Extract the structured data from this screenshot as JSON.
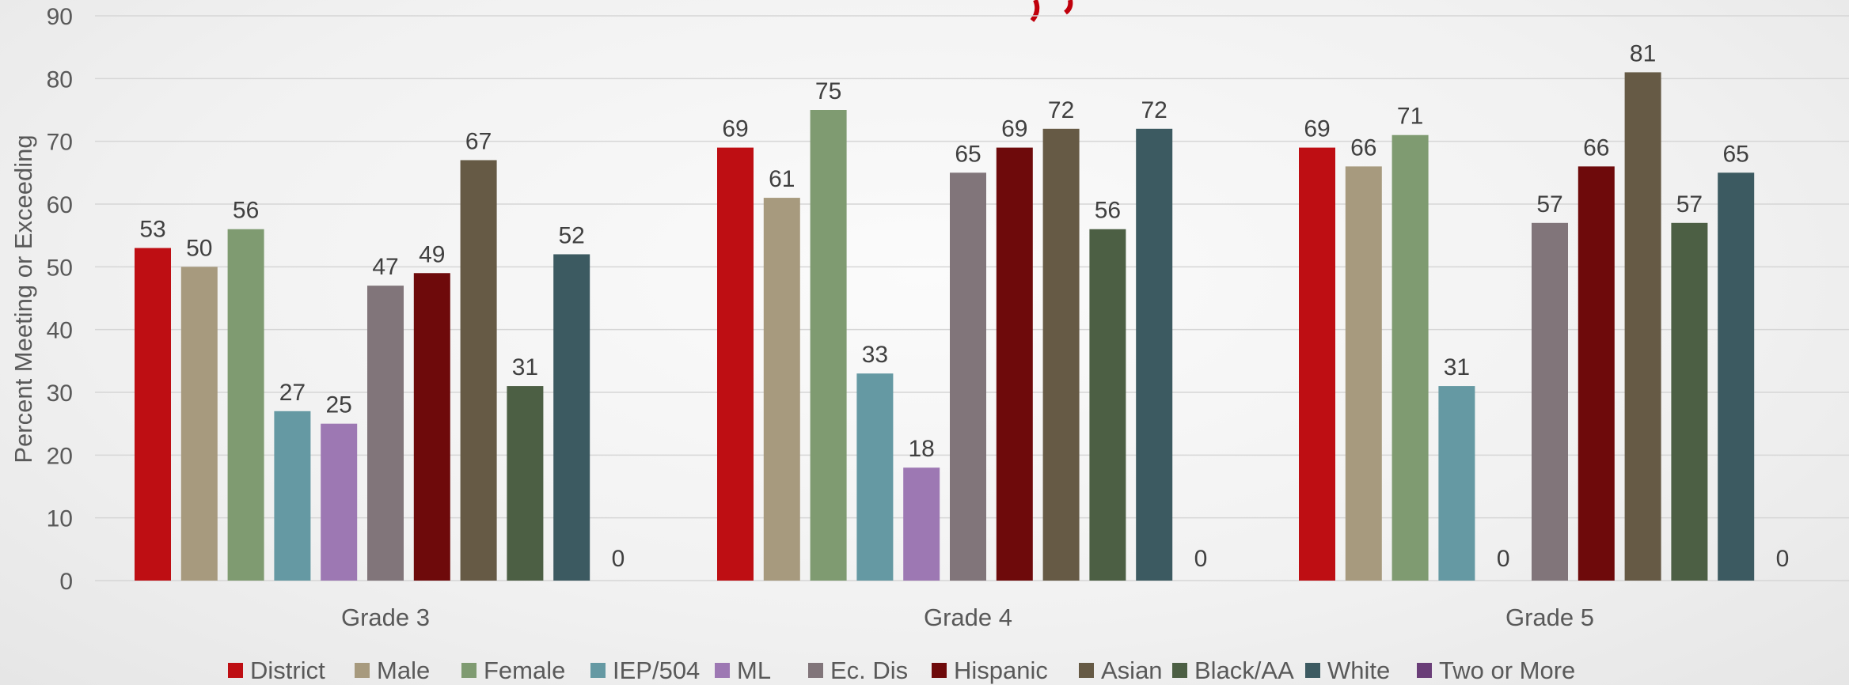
{
  "chart_data": {
    "type": "bar",
    "title": "",
    "xlabel": "",
    "ylabel": "Percent Meeting or Exceeding",
    "ylim": [
      0,
      90
    ],
    "yticks": [
      0,
      10,
      20,
      30,
      40,
      50,
      60,
      70,
      80,
      90
    ],
    "grid": true,
    "legend_position": "bottom",
    "categories": [
      "Grade 3",
      "Grade 4",
      "Grade 5"
    ],
    "series": [
      {
        "name": "District",
        "color": "#be0e13",
        "values": [
          53,
          69,
          69
        ]
      },
      {
        "name": "Male",
        "color": "#a79a7e",
        "values": [
          50,
          61,
          66
        ]
      },
      {
        "name": "Female",
        "color": "#7f9b71",
        "values": [
          56,
          75,
          71
        ]
      },
      {
        "name": "IEP/504",
        "color": "#6599a3",
        "values": [
          27,
          33,
          31
        ]
      },
      {
        "name": "ML",
        "color": "#9d78b3",
        "values": [
          25,
          18,
          null
        ]
      },
      {
        "name": "Ec. Dis",
        "color": "#81757a",
        "values": [
          47,
          65,
          57
        ]
      },
      {
        "name": "Hispanic",
        "color": "#6e0a0b",
        "values": [
          49,
          69,
          66
        ]
      },
      {
        "name": "Asian",
        "color": "#665a45",
        "values": [
          67,
          72,
          81
        ]
      },
      {
        "name": "Black/AA",
        "color": "#4c5f44",
        "values": [
          31,
          56,
          57
        ]
      },
      {
        "name": "White",
        "color": "#3c5a61",
        "values": [
          52,
          72,
          65
        ]
      },
      {
        "name": "Two or More",
        "color": "#6a3e78",
        "values": [
          0,
          0,
          0
        ]
      }
    ],
    "data_labels": [
      [
        "53",
        "50",
        "56",
        "27",
        "25",
        "47",
        "49",
        "67",
        "31",
        "52",
        "0"
      ],
      [
        "69",
        "61",
        "75",
        "33",
        "18",
        "65",
        "69",
        "72",
        "56",
        "72",
        "0"
      ],
      [
        "69",
        "66",
        "71",
        "31",
        "0",
        "57",
        "66",
        "81",
        "57",
        "65",
        "0"
      ]
    ]
  }
}
